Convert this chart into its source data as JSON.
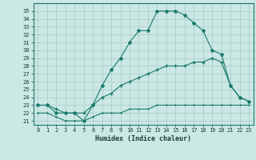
{
  "xlabel": "Humidex (Indice chaleur)",
  "bg_color": "#cce8e4",
  "grid_color": "#aacfcb",
  "line_color": "#1a7a6e",
  "xlim": [
    -0.5,
    23.5
  ],
  "ylim": [
    20.5,
    36.0
  ],
  "xticks": [
    0,
    1,
    2,
    3,
    4,
    5,
    6,
    7,
    8,
    9,
    10,
    11,
    12,
    13,
    14,
    15,
    16,
    17,
    18,
    19,
    20,
    21,
    22,
    23
  ],
  "yticks": [
    21,
    22,
    23,
    24,
    25,
    26,
    27,
    28,
    29,
    30,
    31,
    32,
    33,
    34,
    35
  ],
  "line1_x": [
    0,
    1,
    2,
    3,
    4,
    5,
    6,
    7,
    8,
    9,
    10,
    11,
    12,
    13,
    14,
    15,
    16,
    17,
    18,
    19,
    20,
    21,
    22,
    23
  ],
  "line1_y": [
    23.0,
    23.0,
    22.0,
    22.0,
    22.0,
    21.0,
    23.0,
    25.5,
    27.5,
    29.0,
    31.0,
    32.5,
    32.5,
    35.0,
    35.0,
    35.0,
    34.5,
    33.5,
    32.5,
    30.0,
    29.5,
    25.5,
    24.0,
    23.5
  ],
  "line2_x": [
    0,
    1,
    2,
    3,
    4,
    5,
    6,
    7,
    8,
    9,
    10,
    11,
    12,
    13,
    14,
    15,
    16,
    17,
    18,
    19,
    20,
    21,
    22,
    23
  ],
  "line2_y": [
    23.0,
    23.0,
    22.5,
    22.0,
    22.0,
    22.0,
    23.0,
    24.0,
    24.5,
    25.5,
    26.0,
    26.5,
    27.0,
    27.5,
    28.0,
    28.0,
    28.0,
    28.5,
    28.5,
    29.0,
    28.5,
    25.5,
    24.0,
    23.5
  ],
  "line3_x": [
    0,
    1,
    2,
    3,
    4,
    5,
    6,
    7,
    8,
    9,
    10,
    11,
    12,
    13,
    14,
    15,
    16,
    17,
    18,
    19,
    20,
    21,
    22,
    23
  ],
  "line3_y": [
    22.0,
    22.0,
    21.5,
    21.0,
    21.0,
    21.0,
    21.5,
    22.0,
    22.0,
    22.0,
    22.5,
    22.5,
    22.5,
    23.0,
    23.0,
    23.0,
    23.0,
    23.0,
    23.0,
    23.0,
    23.0,
    23.0,
    23.0,
    23.0
  ]
}
